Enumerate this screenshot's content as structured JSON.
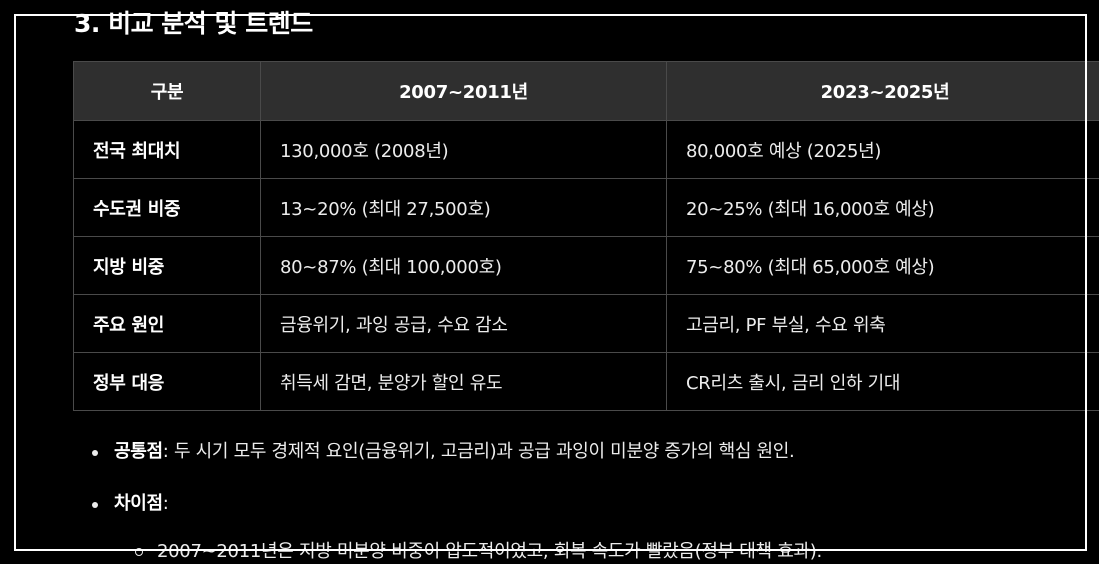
{
  "section": {
    "heading": "3. 비교 분석 및 트렌드"
  },
  "table": {
    "headers": [
      "구분",
      "2007~2011년",
      "2023~2025년"
    ],
    "rows": [
      [
        "전국 최대치",
        "130,000호 (2008년)",
        "80,000호 예상 (2025년)"
      ],
      [
        "수도권 비중",
        "13~20% (최대 27,500호)",
        "20~25% (최대 16,000호 예상)"
      ],
      [
        "지방 비중",
        "80~87% (최대 100,000호)",
        "75~80% (최대 65,000호 예상)"
      ],
      [
        "주요 원인",
        "금융위기, 과잉 공급, 수요 감소",
        "고금리, PF 부실, 수요 위축"
      ],
      [
        "정부 대응",
        "취득세 감면, 분양가 할인 유도",
        "CR리츠 출시, 금리 인하 기대"
      ]
    ]
  },
  "bullets": [
    {
      "label": "공통점",
      "text": ": 두 시기 모두 경제적 요인(금융위기, 고금리)과 공급 과잉이 미분양 증가의 핵심 원인."
    },
    {
      "label": "차이점",
      "text": ":"
    }
  ],
  "sub_bullets": [
    "2007~2011년은 지방 미분양 비중이 압도적이었고, 회복 속도가 빨랐음(정부 대책 효과)."
  ],
  "colors": {
    "background": "#000000",
    "header_row": "#2f2f2f",
    "border": "#4a4a4a",
    "text": "#ececec",
    "frame": "#ffffff"
  }
}
